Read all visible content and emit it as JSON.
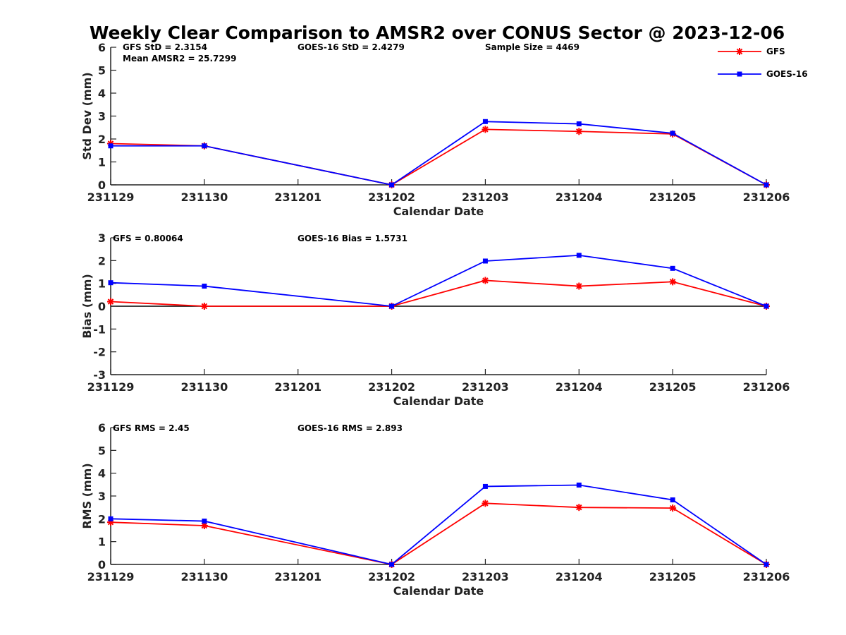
{
  "title": "Weekly Clear Comparison to AMSR2 over CONUS Sector @ 2023-12-06",
  "legend": {
    "placement": "top-right",
    "entries": [
      {
        "label": "GFS",
        "color": "#ff0000",
        "marker": "asterisk"
      },
      {
        "label": "GOES-16",
        "color": "#0000ff",
        "marker": "square"
      }
    ]
  },
  "colors": {
    "gfs": "#ff0000",
    "goes": "#0000ff",
    "axis": "#222222",
    "zero_line": "#000000"
  },
  "chart_data": [
    {
      "type": "line",
      "xlabel": "Calendar Date",
      "ylabel": "Std Dev (mm)",
      "ylim": [
        0,
        6
      ],
      "yticks": [
        "0",
        "1",
        "2",
        "3",
        "4",
        "5",
        "6"
      ],
      "categories": [
        "231129",
        "231130",
        "231201",
        "231202",
        "231203",
        "231204",
        "231205",
        "231206"
      ],
      "series": [
        {
          "name": "GFS",
          "values": [
            1.8,
            1.7,
            null,
            0,
            2.42,
            2.33,
            2.22,
            0
          ]
        },
        {
          "name": "GOES-16",
          "values": [
            1.7,
            1.7,
            null,
            0,
            2.76,
            2.66,
            2.25,
            0
          ]
        }
      ],
      "annotations": [
        "GFS StD = 2.3154",
        "Mean AMSR2 = 25.7299",
        "GOES-16 StD = 2.4279",
        "Sample Size = 4469"
      ],
      "zero_line": false
    },
    {
      "type": "line",
      "xlabel": "Calendar Date",
      "ylabel": "Bias (mm)",
      "ylim": [
        -3,
        3
      ],
      "yticks": [
        "-3",
        "-2",
        "-1",
        "0",
        "1",
        "2",
        "3"
      ],
      "categories": [
        "231129",
        "231130",
        "231201",
        "231202",
        "231203",
        "231204",
        "231205",
        "231206"
      ],
      "series": [
        {
          "name": "GFS",
          "values": [
            0.2,
            0.0,
            null,
            0,
            1.13,
            0.88,
            1.07,
            0
          ]
        },
        {
          "name": "GOES-16",
          "values": [
            1.03,
            0.88,
            null,
            0,
            1.98,
            2.23,
            1.66,
            0
          ]
        }
      ],
      "annotations": [
        "GFS = 0.80064",
        "GOES-16 Bias  = 1.5731"
      ],
      "zero_line": true
    },
    {
      "type": "line",
      "xlabel": "Calendar Date",
      "ylabel": "RMS (mm)",
      "ylim": [
        0,
        6
      ],
      "yticks": [
        "0",
        "1",
        "2",
        "3",
        "4",
        "5",
        "6"
      ],
      "categories": [
        "231129",
        "231130",
        "231201",
        "231202",
        "231203",
        "231204",
        "231205",
        "231206"
      ],
      "series": [
        {
          "name": "GFS",
          "values": [
            1.85,
            1.7,
            null,
            0,
            2.68,
            2.5,
            2.47,
            0
          ]
        },
        {
          "name": "GOES-16",
          "values": [
            2.0,
            1.9,
            null,
            0,
            3.42,
            3.48,
            2.83,
            0
          ]
        }
      ],
      "annotations": [
        "GFS RMS = 2.45",
        "GOES-16 RMS = 2.893"
      ],
      "zero_line": false
    }
  ]
}
